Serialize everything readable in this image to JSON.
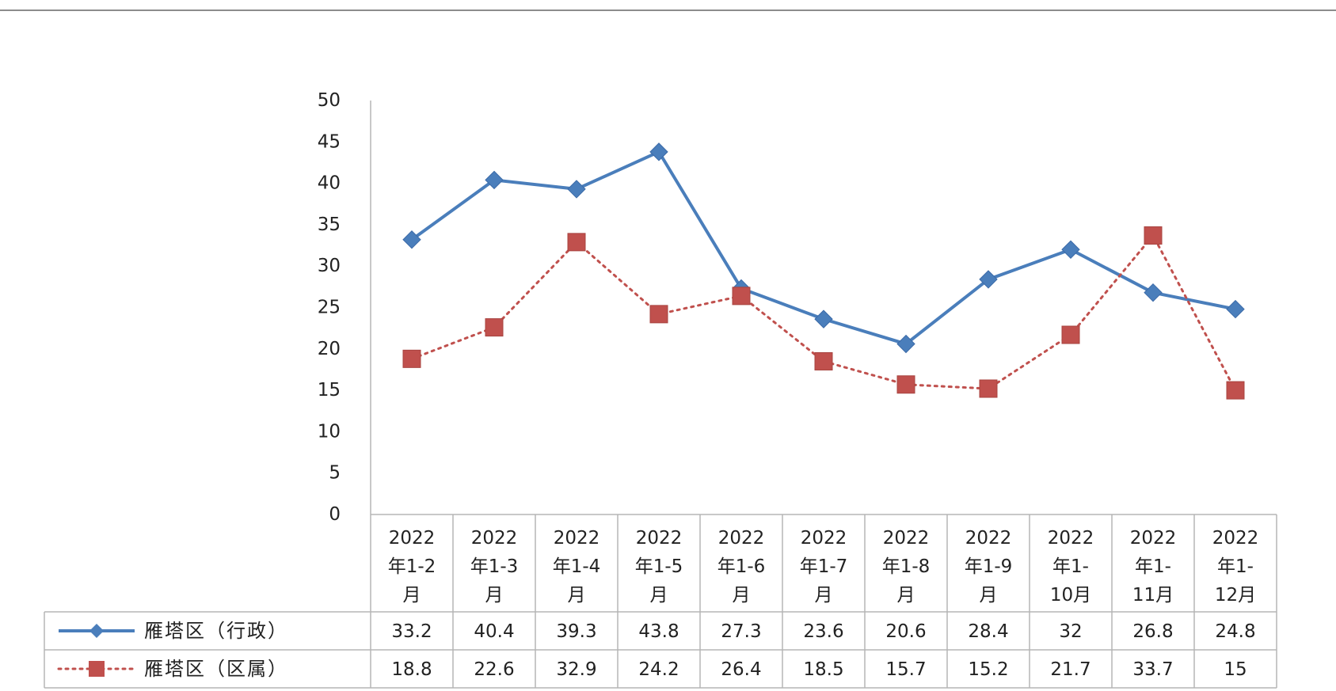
{
  "chart_data": {
    "type": "line",
    "title": "",
    "xlabel": "",
    "ylabel": "",
    "ylim": [
      0,
      50
    ],
    "yticks": [
      0,
      5,
      10,
      15,
      20,
      25,
      30,
      35,
      40,
      45,
      50
    ],
    "grid": false,
    "legend": "data-table-left",
    "categories": [
      [
        "2022",
        "年1-2",
        "月"
      ],
      [
        "2022",
        "年1-3",
        "月"
      ],
      [
        "2022",
        "年1-4",
        "月"
      ],
      [
        "2022",
        "年1-5",
        "月"
      ],
      [
        "2022",
        "年1-6",
        "月"
      ],
      [
        "2022",
        "年1-7",
        "月"
      ],
      [
        "2022",
        "年1-8",
        "月"
      ],
      [
        "2022",
        "年1-9",
        "月"
      ],
      [
        "2022",
        "年1-",
        "10月"
      ],
      [
        "2022",
        "年1-",
        "11月"
      ],
      [
        "2022",
        "年1-",
        "12月"
      ]
    ],
    "series": [
      {
        "name": "雁塔区（行政）",
        "values": [
          33.2,
          40.4,
          39.3,
          43.8,
          27.3,
          23.6,
          20.6,
          28.4,
          32,
          26.8,
          24.8
        ],
        "color": "#4a7ebb",
        "marker": "diamond",
        "line": "solid"
      },
      {
        "name": "雁塔区（区属）",
        "values": [
          18.8,
          22.6,
          32.9,
          24.2,
          26.4,
          18.5,
          15.7,
          15.2,
          21.7,
          33.7,
          15
        ],
        "color": "#c0504d",
        "marker": "square",
        "line": "dotted"
      }
    ]
  }
}
